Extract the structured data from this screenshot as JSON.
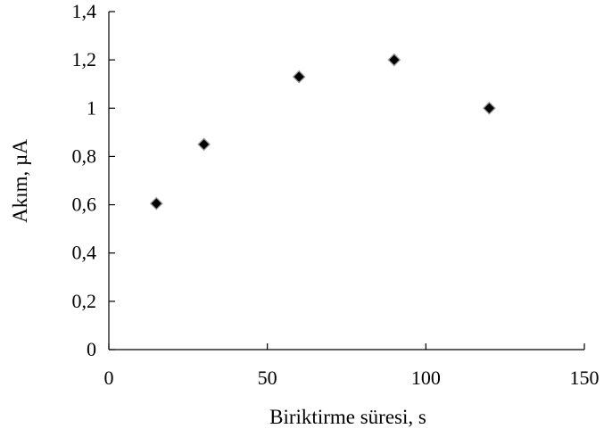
{
  "chart_data": {
    "type": "scatter",
    "title": "",
    "xlabel": "Biriktirme süresi, s",
    "ylabel": "Akım, µA",
    "xlim": [
      0,
      150
    ],
    "ylim": [
      0,
      1.4
    ],
    "xticks": [
      0,
      50,
      100,
      150
    ],
    "xtick_labels": [
      "0",
      "50",
      "100",
      "150"
    ],
    "yticks": [
      0,
      0.2,
      0.4,
      0.6,
      0.8,
      1,
      1.2,
      1.4
    ],
    "ytick_labels": [
      "0",
      "0,2",
      "0,4",
      "0,6",
      "0,8",
      "1",
      "1,2",
      "1,4"
    ],
    "grid": false,
    "legend": "none",
    "marker": "diamond",
    "marker_color": "#000000",
    "marker_edge_color": "#9a9a9a",
    "series": [
      {
        "x": [
          15,
          30,
          60,
          90,
          120
        ],
        "y": [
          0.605,
          0.85,
          1.13,
          1.2,
          1.0
        ]
      }
    ]
  }
}
